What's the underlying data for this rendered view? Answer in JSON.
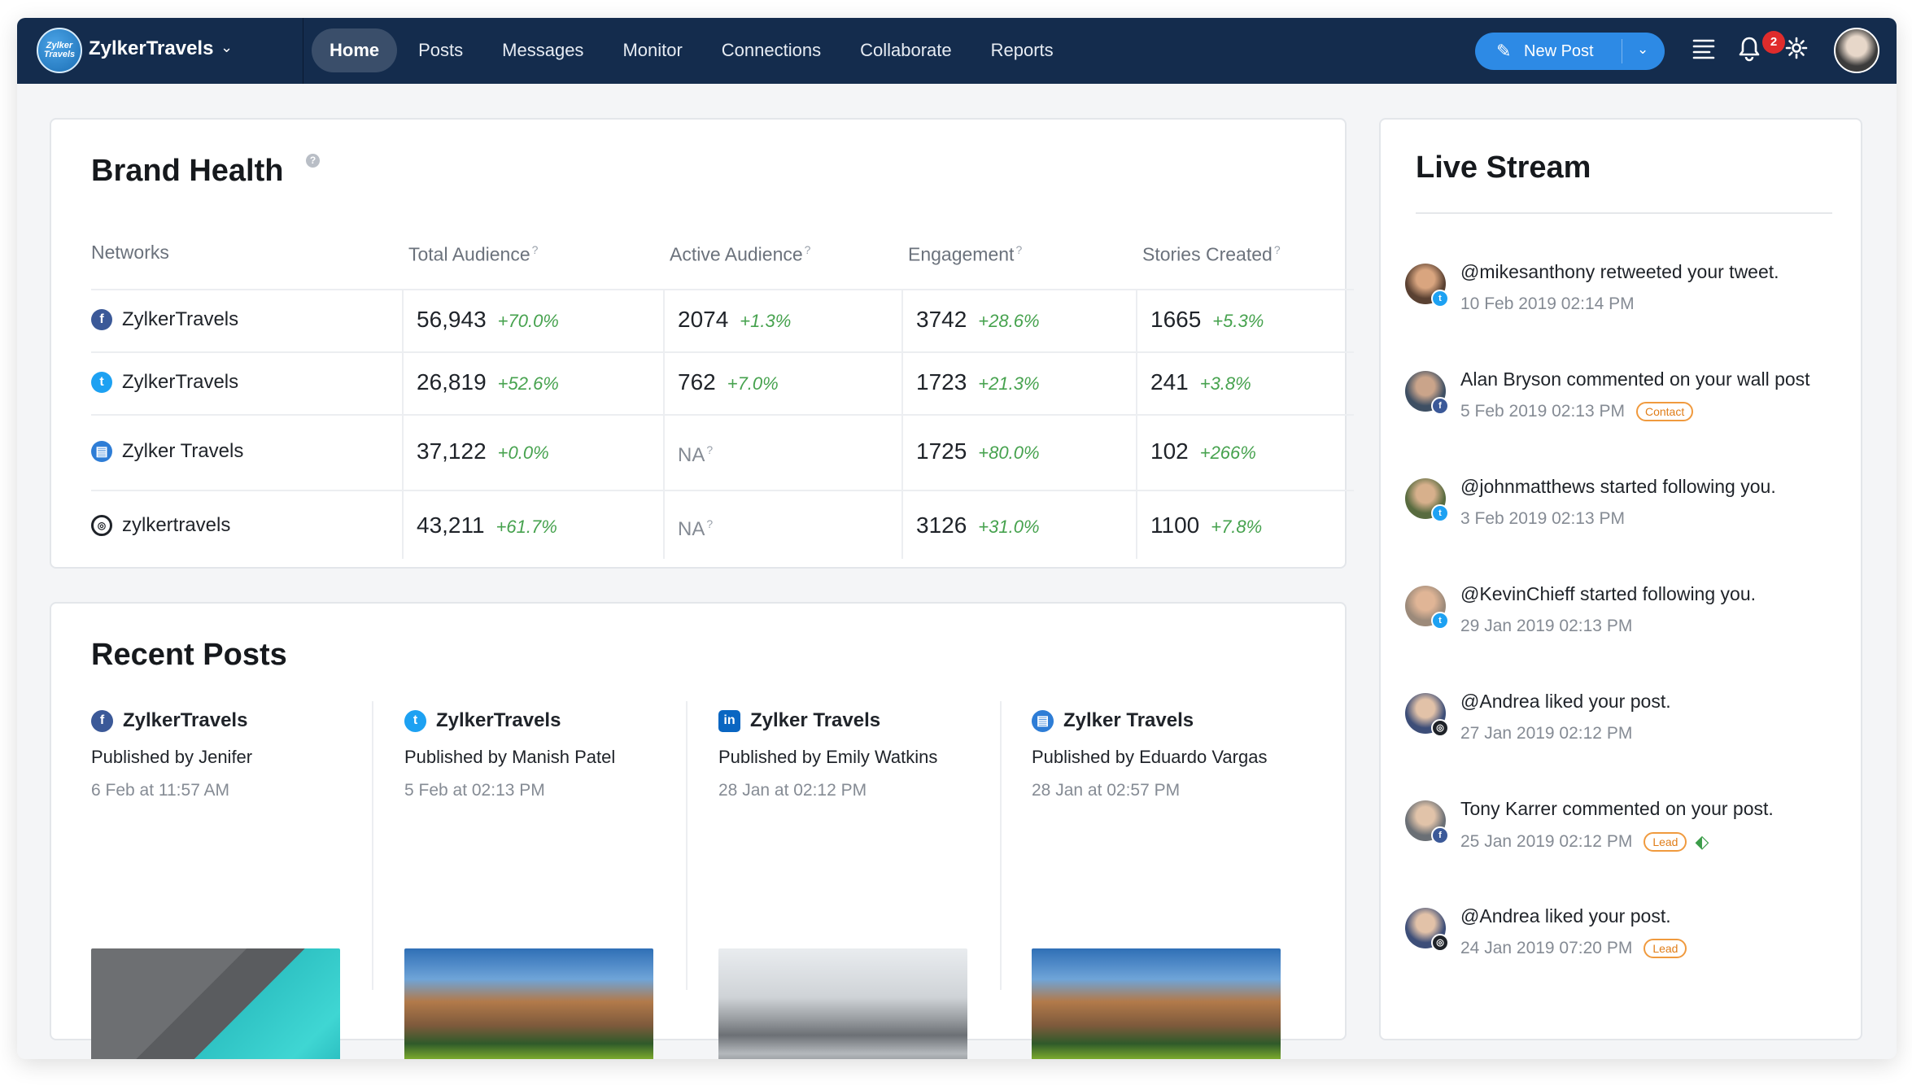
{
  "topbar": {
    "logo_text": "Zylker Travels",
    "brand_name": "ZylkerTravels",
    "nav": [
      {
        "label": "Home",
        "active": true
      },
      {
        "label": "Posts"
      },
      {
        "label": "Messages"
      },
      {
        "label": "Monitor"
      },
      {
        "label": "Connections"
      },
      {
        "label": "Collaborate"
      },
      {
        "label": "Reports"
      }
    ],
    "new_post_label": "New Post",
    "notification_count": "2"
  },
  "brand_health": {
    "title": "Brand Health",
    "columns": [
      "Networks",
      "Total Audience",
      "Active Audience",
      "Engagement",
      "Stories Created"
    ],
    "help_mark": "?",
    "rows": [
      {
        "network": "ZylkerTravels",
        "icon": "facebook-icon",
        "total": "56,943",
        "total_pct": "+70.0%",
        "active": "2074",
        "active_pct": "+1.3%",
        "engagement": "3742",
        "engagement_pct": "+28.6%",
        "stories": "1665",
        "stories_pct": "+5.3%"
      },
      {
        "network": "ZylkerTravels",
        "icon": "twitter-icon",
        "total": "26,819",
        "total_pct": "+52.6%",
        "active": "762",
        "active_pct": "+7.0%",
        "engagement": "1723",
        "engagement_pct": "+21.3%",
        "stories": "241",
        "stories_pct": "+3.8%"
      },
      {
        "network": "Zylker Travels",
        "icon": "company-page-icon",
        "total": "37,122",
        "total_pct": "+0.0%",
        "active": "NA",
        "active_pct": "",
        "engagement": "1725",
        "engagement_pct": "+80.0%",
        "stories": "102",
        "stories_pct": "+266%"
      },
      {
        "network": "zylkertravels",
        "icon": "instagram-icon",
        "total": "43,211",
        "total_pct": "+61.7%",
        "active": "NA",
        "active_pct": "",
        "engagement": "3126",
        "engagement_pct": "+31.0%",
        "stories": "1100",
        "stories_pct": "+7.8%"
      }
    ]
  },
  "recent_posts": {
    "title": "Recent Posts",
    "posts": [
      {
        "network": "ZylkerTravels",
        "icon": "facebook-icon",
        "by": "Published by Jenifer",
        "date": "6 Feb at 11:57 AM",
        "image": "pool-dock-photo"
      },
      {
        "network": "ZylkerTravels",
        "icon": "twitter-icon",
        "by": "Published by Manish Patel",
        "date": "5 Feb at 02:13 PM",
        "image": "mountain-cabin-photo"
      },
      {
        "network": "Zylker Travels",
        "icon": "linkedin-icon",
        "by": "Published by Emily Watkins",
        "date": "28 Jan at 02:12 PM",
        "image": "taj-mahal-photo"
      },
      {
        "network": "Zylker Travels",
        "icon": "company-page-icon",
        "by": "Published by Eduardo Vargas",
        "date": "28 Jan at 02:57 PM",
        "image": "mountain-cabin-photo"
      }
    ]
  },
  "live_stream": {
    "title": "Live Stream",
    "items": [
      {
        "text": "@mikesanthony retweeted your tweet.",
        "time": "10 Feb 2019 02:14 PM",
        "net": "twitter",
        "tag": ""
      },
      {
        "text": "Alan Bryson commented on your wall post",
        "time": "5 Feb 2019 02:13 PM",
        "net": "facebook",
        "tag": "Contact"
      },
      {
        "text": "@johnmatthews started following you.",
        "time": "3 Feb 2019 02:13 PM",
        "net": "twitter",
        "tag": ""
      },
      {
        "text": "@KevinChieff started following you.",
        "time": "29 Jan 2019 02:13 PM",
        "net": "twitter",
        "tag": ""
      },
      {
        "text": "@Andrea liked your post.",
        "time": "27 Jan 2019 02:12 PM",
        "net": "instagram",
        "tag": ""
      },
      {
        "text": "Tony Karrer commented on your post.",
        "time": "25 Jan 2019 02:12 PM",
        "net": "facebook",
        "tag": "Lead",
        "deal": true
      },
      {
        "text": "@Andrea liked your post.",
        "time": "24 Jan 2019 07:20 PM",
        "net": "instagram",
        "tag": "Lead"
      }
    ]
  },
  "colors": {
    "topbar": "#142c4d",
    "accent": "#2d8ae5",
    "positive": "#46a24e",
    "tag": "#f09a3e",
    "badge": "#e02c2c"
  }
}
